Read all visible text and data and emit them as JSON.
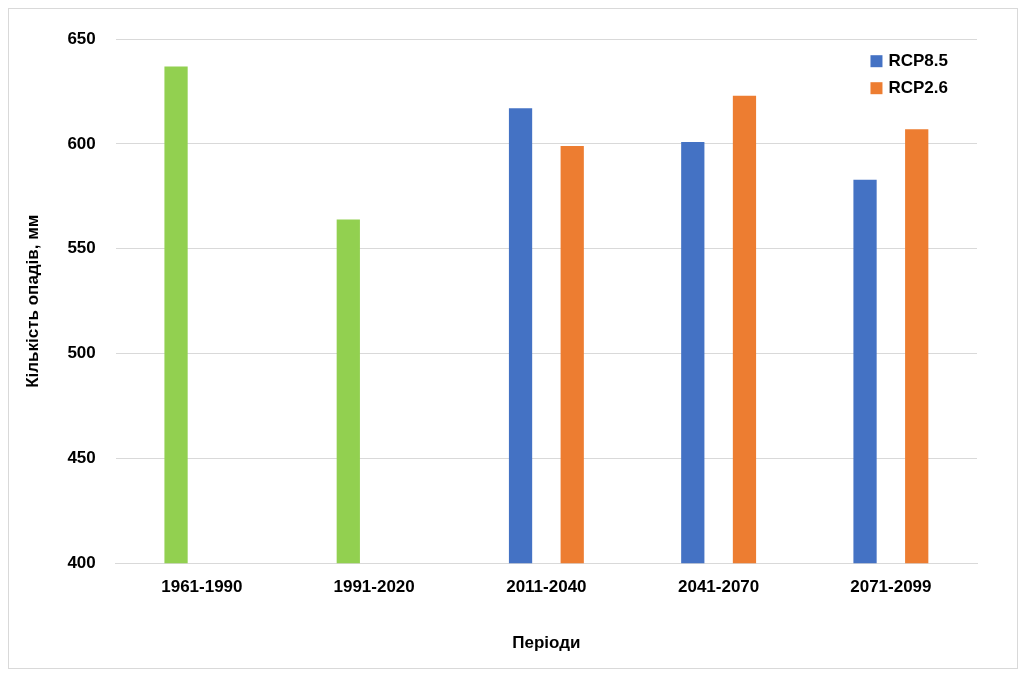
{
  "chart_data": {
    "type": "bar",
    "xlabel": "Періоди",
    "ylabel": "Кількість опадів, мм",
    "categories": [
      "1961-1990",
      "1991-2020",
      "2011-2040",
      "2041-2070",
      "2071-2099"
    ],
    "series": [
      {
        "color": "#92d050",
        "values": [
          637,
          564,
          null,
          null,
          null
        ]
      },
      {
        "name": "RCP8.5",
        "color": "#4472c4",
        "values": [
          null,
          null,
          617,
          601,
          583
        ]
      },
      {
        "name": "RCP2.6",
        "color": "#ed7d31",
        "values": [
          null,
          null,
          599,
          623,
          607
        ]
      }
    ],
    "ylim": [
      400,
      650
    ],
    "yticks": [
      400,
      450,
      500,
      550,
      600,
      650
    ],
    "grid": "y",
    "legend": "top right"
  }
}
